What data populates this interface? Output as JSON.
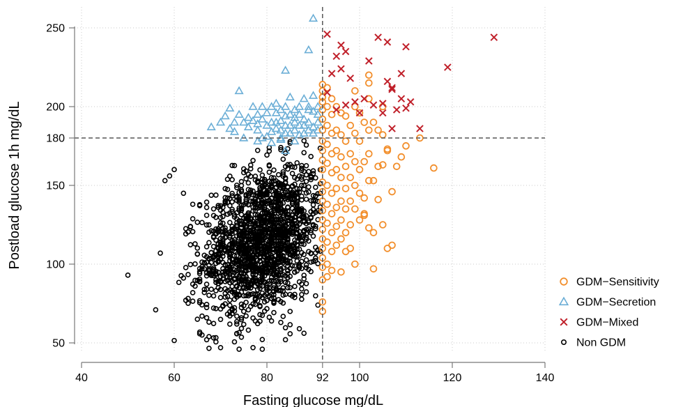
{
  "chart_data": {
    "type": "scatter",
    "title": "",
    "xlabel": "Fasting glucose mg/dL",
    "ylabel": "Postload glucose 1h mg/dL",
    "xlim": [
      40,
      140
    ],
    "ylim": [
      45,
      260
    ],
    "x_ticks": [
      40,
      60,
      80,
      92,
      100,
      120,
      140
    ],
    "y_ticks": [
      50,
      100,
      150,
      180,
      200,
      250
    ],
    "grid": "dotted",
    "reference_lines": {
      "x": 92,
      "y": 180,
      "style": "dashed"
    },
    "legend_position": "right",
    "series": [
      {
        "name": "GDM−Sensitivity",
        "marker": "circle-open",
        "color": "#f28e2b",
        "points": [
          [
            92,
            214
          ],
          [
            92,
            210
          ],
          [
            92,
            206
          ],
          [
            92,
            203
          ],
          [
            92,
            198
          ],
          [
            92,
            192
          ],
          [
            92,
            185
          ],
          [
            92,
            178
          ],
          [
            92,
            172
          ],
          [
            92,
            166
          ],
          [
            92,
            160
          ],
          [
            92,
            152
          ],
          [
            92,
            146
          ],
          [
            92,
            140
          ],
          [
            92,
            134
          ],
          [
            92,
            128
          ],
          [
            92,
            122
          ],
          [
            92,
            116
          ],
          [
            92,
            110
          ],
          [
            92,
            104
          ],
          [
            92,
            98
          ],
          [
            92,
            90
          ],
          [
            92,
            76
          ],
          [
            92,
            70
          ],
          [
            93,
            212
          ],
          [
            93,
            200
          ],
          [
            93,
            188
          ],
          [
            93,
            176
          ],
          [
            93,
            164
          ],
          [
            93,
            150
          ],
          [
            93,
            138
          ],
          [
            93,
            126
          ],
          [
            93,
            114
          ],
          [
            93,
            100
          ],
          [
            93,
            92
          ],
          [
            94,
            205
          ],
          [
            94,
            195
          ],
          [
            94,
            183
          ],
          [
            94,
            170
          ],
          [
            94,
            158
          ],
          [
            94,
            145
          ],
          [
            94,
            132
          ],
          [
            94,
            120
          ],
          [
            94,
            108
          ],
          [
            94,
            96
          ],
          [
            95,
            200
          ],
          [
            95,
            185
          ],
          [
            95,
            172
          ],
          [
            95,
            160
          ],
          [
            95,
            148
          ],
          [
            95,
            136
          ],
          [
            95,
            124
          ],
          [
            95,
            112
          ],
          [
            96,
            196
          ],
          [
            96,
            182
          ],
          [
            96,
            168
          ],
          [
            96,
            155
          ],
          [
            96,
            140
          ],
          [
            96,
            128
          ],
          [
            96,
            116
          ],
          [
            96,
            95
          ],
          [
            97,
            194
          ],
          [
            97,
            178
          ],
          [
            97,
            162
          ],
          [
            97,
            148
          ],
          [
            97,
            135
          ],
          [
            97,
            120
          ],
          [
            97,
            108
          ],
          [
            98,
            188
          ],
          [
            98,
            170
          ],
          [
            98,
            155
          ],
          [
            98,
            140
          ],
          [
            98,
            125
          ],
          [
            98,
            110
          ],
          [
            99,
            210
          ],
          [
            99,
            200
          ],
          [
            99,
            183
          ],
          [
            99,
            165
          ],
          [
            99,
            150
          ],
          [
            99,
            135
          ],
          [
            99,
            100
          ],
          [
            100,
            196
          ],
          [
            100,
            178
          ],
          [
            100,
            160
          ],
          [
            100,
            145
          ],
          [
            100,
            128
          ],
          [
            101,
            190
          ],
          [
            101,
            165
          ],
          [
            101,
            142
          ],
          [
            101,
            132
          ],
          [
            101,
            131
          ],
          [
            102,
            220
          ],
          [
            102,
            215
          ],
          [
            102,
            205
          ],
          [
            102,
            185
          ],
          [
            102,
            170
          ],
          [
            102,
            153
          ],
          [
            102,
            123
          ],
          [
            103,
            190
          ],
          [
            103,
            153
          ],
          [
            103,
            120
          ],
          [
            103,
            97
          ],
          [
            104,
            185
          ],
          [
            104,
            162
          ],
          [
            104,
            141
          ],
          [
            105,
            200
          ],
          [
            105,
            182
          ],
          [
            105,
            163
          ],
          [
            105,
            125
          ],
          [
            106,
            173
          ],
          [
            106,
            172
          ],
          [
            106,
            110
          ],
          [
            107,
            146
          ],
          [
            107,
            112
          ],
          [
            108,
            162
          ],
          [
            109,
            168
          ],
          [
            110,
            175
          ],
          [
            113,
            180
          ],
          [
            116,
            161
          ]
        ]
      },
      {
        "name": "GDM−Secretion",
        "marker": "triangle-open",
        "color": "#6baed6",
        "points": [
          [
            68,
            187
          ],
          [
            70,
            190
          ],
          [
            71,
            194
          ],
          [
            72,
            186
          ],
          [
            72,
            199
          ],
          [
            73,
            184
          ],
          [
            73,
            190
          ],
          [
            74,
            210
          ],
          [
            74,
            195
          ],
          [
            75,
            190
          ],
          [
            75,
            180
          ],
          [
            76,
            187
          ],
          [
            76,
            193
          ],
          [
            77,
            191
          ],
          [
            77,
            200
          ],
          [
            78,
            185
          ],
          [
            78,
            195
          ],
          [
            78,
            189
          ],
          [
            79,
            192
          ],
          [
            79,
            180
          ],
          [
            79,
            200
          ],
          [
            80,
            188
          ],
          [
            80,
            196
          ],
          [
            80,
            181
          ],
          [
            81,
            190
          ],
          [
            81,
            200
          ],
          [
            81,
            184
          ],
          [
            82,
            190
          ],
          [
            82,
            196
          ],
          [
            82,
            186
          ],
          [
            82,
            202
          ],
          [
            83,
            198
          ],
          [
            83,
            185
          ],
          [
            83,
            191
          ],
          [
            83,
            179
          ],
          [
            84,
            200
          ],
          [
            84,
            188
          ],
          [
            84,
            183
          ],
          [
            84,
            194
          ],
          [
            84,
            223
          ],
          [
            85,
            188
          ],
          [
            85,
            195
          ],
          [
            85,
            183
          ],
          [
            85,
            206
          ],
          [
            86,
            190
          ],
          [
            86,
            185
          ],
          [
            86,
            198
          ],
          [
            86,
            193
          ],
          [
            87,
            188
          ],
          [
            87,
            200
          ],
          [
            87,
            182
          ],
          [
            87,
            195
          ],
          [
            88,
            205
          ],
          [
            88,
            188
          ],
          [
            88,
            192
          ],
          [
            88,
            183
          ],
          [
            89,
            185
          ],
          [
            89,
            198
          ],
          [
            89,
            190
          ],
          [
            89,
            200
          ],
          [
            90,
            207
          ],
          [
            90,
            187
          ],
          [
            90,
            183
          ],
          [
            90,
            197
          ],
          [
            91,
            185
          ],
          [
            91,
            190
          ],
          [
            91,
            195
          ],
          [
            91,
            200
          ],
          [
            89,
            236
          ],
          [
            90,
            256
          ],
          [
            83,
            180
          ],
          [
            86,
            178
          ],
          [
            84,
            172
          ],
          [
            81,
            177
          ],
          [
            78,
            178
          ]
        ]
      },
      {
        "name": "GDM−Mixed",
        "marker": "x",
        "color": "#c0202a",
        "points": [
          [
            93,
            246
          ],
          [
            93,
            209
          ],
          [
            94,
            221
          ],
          [
            95,
            232
          ],
          [
            95,
            198
          ],
          [
            96,
            239
          ],
          [
            96,
            224
          ],
          [
            97,
            235
          ],
          [
            97,
            201
          ],
          [
            98,
            218
          ],
          [
            99,
            203
          ],
          [
            100,
            196
          ],
          [
            101,
            205
          ],
          [
            102,
            229
          ],
          [
            103,
            201
          ],
          [
            104,
            244
          ],
          [
            105,
            202
          ],
          [
            105,
            196
          ],
          [
            106,
            241
          ],
          [
            106,
            216
          ],
          [
            107,
            211
          ],
          [
            107,
            212
          ],
          [
            107,
            186
          ],
          [
            108,
            198
          ],
          [
            109,
            205
          ],
          [
            109,
            221
          ],
          [
            110,
            238
          ],
          [
            110,
            199
          ],
          [
            111,
            203
          ],
          [
            113,
            186
          ],
          [
            119,
            225
          ],
          [
            129,
            244
          ]
        ]
      },
      {
        "name": "Non GDM",
        "marker": "circle-open-small",
        "color": "#000000",
        "generator": {
          "count": 1700,
          "x_mean": 79,
          "x_sd": 6.5,
          "x_range": [
            60,
            91.8
          ],
          "y_mean": 115,
          "y_sd": 24,
          "y_range": [
            46,
            179
          ],
          "correlation": 0.3
        },
        "extra_points": [
          [
            50,
            93
          ],
          [
            56,
            71
          ],
          [
            57,
            107
          ],
          [
            58,
            153
          ],
          [
            59,
            156
          ],
          [
            60,
            160
          ],
          [
            62,
            145
          ],
          [
            64,
            138
          ],
          [
            65,
            65
          ],
          [
            66,
            55
          ],
          [
            67,
            52
          ],
          [
            70,
            47
          ],
          [
            74,
            46
          ],
          [
            77,
            47
          ],
          [
            79,
            46
          ],
          [
            84,
            52
          ],
          [
            87,
            59
          ],
          [
            91,
            74
          ]
        ]
      }
    ]
  }
}
